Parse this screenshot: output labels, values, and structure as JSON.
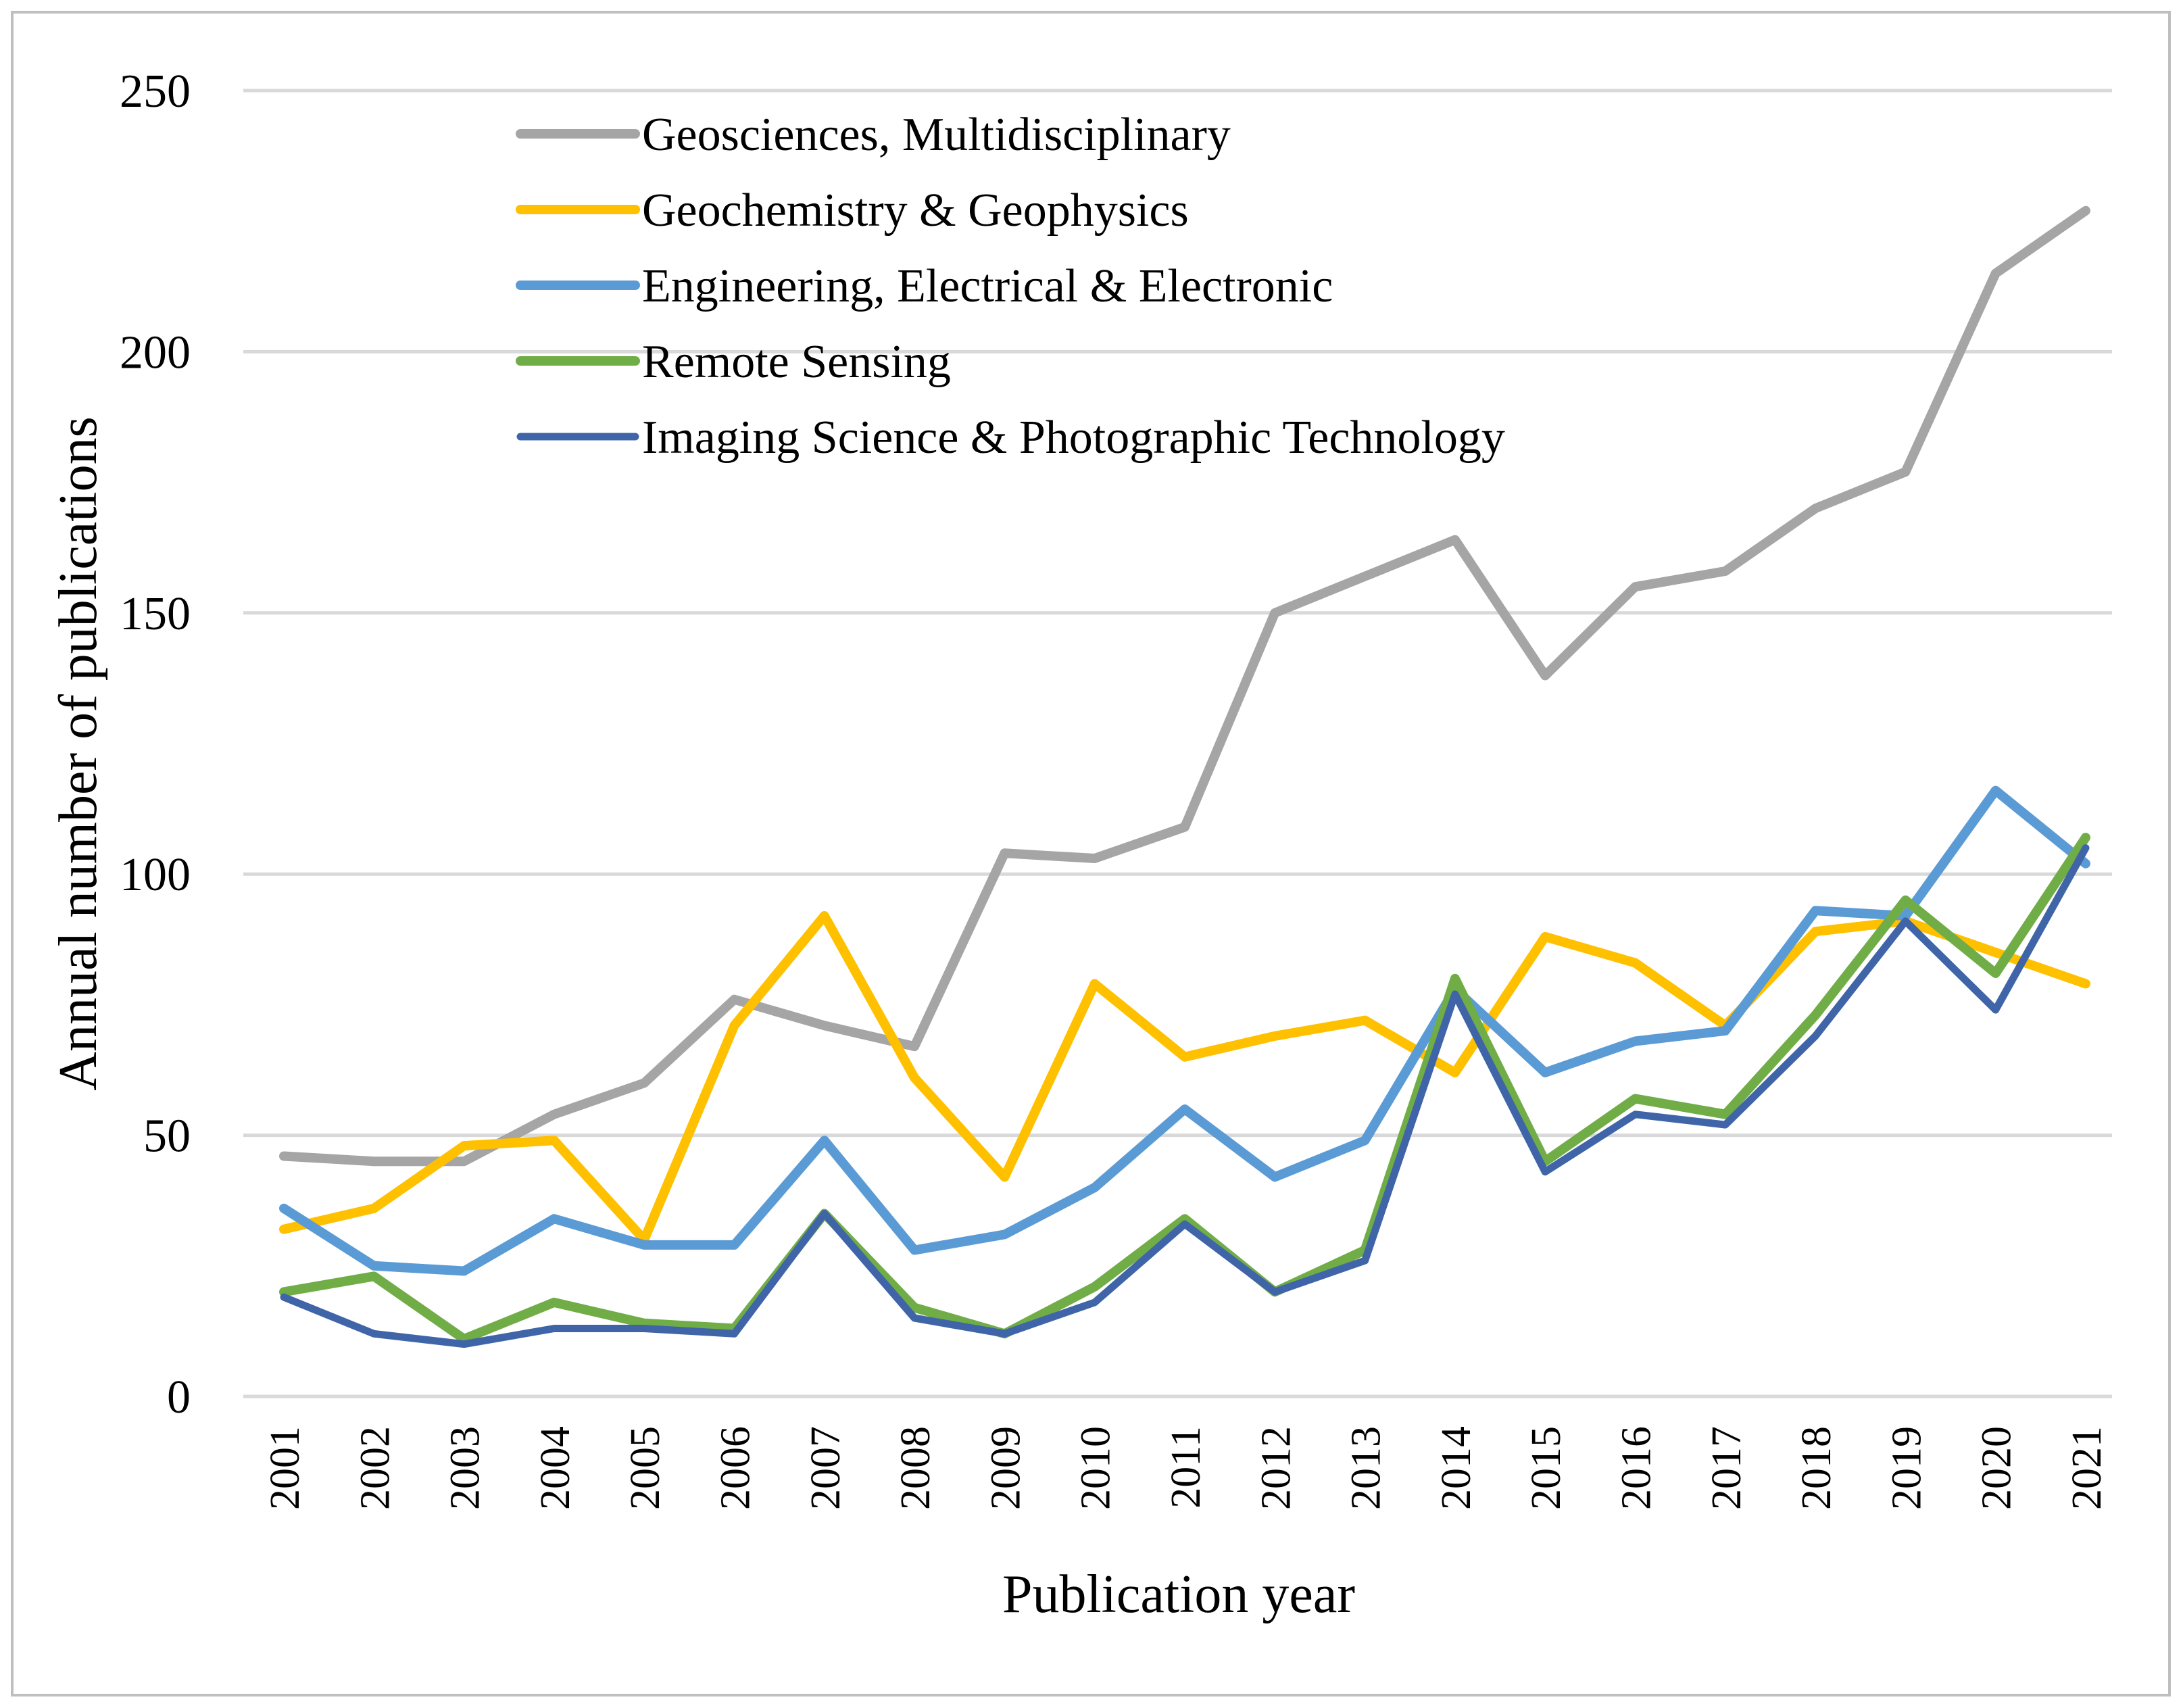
{
  "chart_data": {
    "type": "line",
    "title": "",
    "xlabel": "Publication year",
    "ylabel": "Annual number of publications",
    "ylim": [
      0,
      250
    ],
    "yticks": [
      0,
      50,
      100,
      150,
      200,
      250
    ],
    "grid": true,
    "legend_position": "top-left",
    "categories": [
      "2001",
      "2002",
      "2003",
      "2004",
      "2005",
      "2006",
      "2007",
      "2008",
      "2009",
      "2010",
      "2011",
      "2012",
      "2013",
      "2014",
      "2015",
      "2016",
      "2017",
      "2018",
      "2019",
      "2020",
      "2021"
    ],
    "series": [
      {
        "name": "Geosciences, Multidisciplinary",
        "color": "#a5a5a5",
        "values": [
          46,
          45,
          45,
          54,
          60,
          76,
          71,
          67,
          104,
          103,
          109,
          150,
          157,
          164,
          138,
          155,
          158,
          170,
          177,
          215,
          227
        ]
      },
      {
        "name": "Geochemistry & Geophysics",
        "color": "#ffc000",
        "values": [
          32,
          36,
          48,
          49,
          30,
          71,
          92,
          61,
          42,
          79,
          65,
          69,
          72,
          62,
          88,
          83,
          71,
          89,
          91,
          85,
          79
        ]
      },
      {
        "name": "Engineering, Electrical & Electronic",
        "color": "#5b9bd5",
        "values": [
          36,
          25,
          24,
          34,
          29,
          29,
          49,
          28,
          31,
          40,
          55,
          42,
          49,
          78,
          62,
          68,
          70,
          93,
          92,
          116,
          102
        ]
      },
      {
        "name": "Remote Sensing",
        "color": "#70ad47",
        "values": [
          20,
          23,
          11,
          18,
          14,
          13,
          35,
          17,
          12,
          21,
          34,
          20,
          28,
          80,
          45,
          57,
          54,
          73,
          95,
          81,
          107
        ]
      },
      {
        "name": "Imaging Science & Photographic Technology",
        "color": "#3f65a8",
        "values": [
          19,
          12,
          10,
          13,
          13,
          12,
          35,
          15,
          12,
          18,
          33,
          20,
          26,
          77,
          43,
          54,
          52,
          69,
          91,
          74,
          105
        ]
      }
    ]
  }
}
